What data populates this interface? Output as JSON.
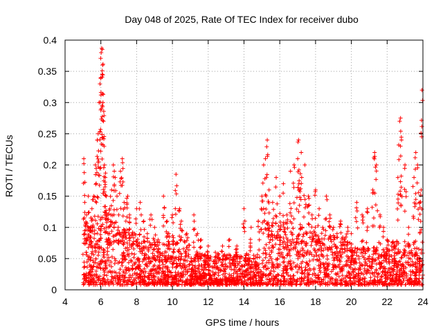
{
  "chart_data": {
    "type": "scatter",
    "title": "Day 048 of 2025, Rate Of TEC Index for receiver dubo",
    "xlabel": "GPS time / hours",
    "ylabel": "ROTI / TECUs",
    "xlim": [
      4,
      24
    ],
    "ylim": [
      0,
      0.4
    ],
    "x_ticks": [
      4,
      6,
      8,
      10,
      12,
      14,
      16,
      18,
      20,
      22,
      24
    ],
    "x_tick_labels": [
      "4",
      "6",
      "8",
      "10",
      "12",
      "14",
      "16",
      "18",
      "20",
      "22",
      "24"
    ],
    "y_ticks": [
      0,
      0.05,
      0.1,
      0.15,
      0.2,
      0.25,
      0.3,
      0.35,
      0.4
    ],
    "y_tick_labels": [
      "0",
      "0.05",
      "0.1",
      "0.15",
      "0.2",
      "0.25",
      "0.3",
      "0.35",
      "0.4"
    ],
    "grid": true,
    "legend": "none",
    "marker": "+",
    "color": "#ff0000",
    "series": [
      {
        "x": [
          5.05,
          5.1,
          5.2,
          5.3,
          5.4,
          5.5,
          5.6,
          5.7,
          5.8,
          5.85,
          5.9,
          5.95,
          6.0,
          6.02,
          6.05,
          6.08,
          6.1,
          6.12,
          6.15,
          6.18,
          6.2,
          6.25,
          6.3,
          6.35,
          6.4,
          6.5,
          6.6,
          6.7,
          6.8,
          6.9,
          7.0,
          7.1,
          7.2,
          7.3,
          7.4,
          7.5,
          7.6,
          7.8,
          8.0,
          8.2,
          8.4,
          8.6,
          8.8,
          9.0,
          9.2,
          9.5,
          9.7,
          9.8,
          10.0,
          10.2,
          10.4,
          10.5,
          10.8,
          11.2,
          11.4,
          11.6,
          12.0,
          12.4,
          12.8,
          13.2,
          13.6,
          14.0,
          14.4,
          14.8,
          15.0,
          15.1,
          15.2,
          15.3,
          15.4,
          15.6,
          15.8,
          16.0,
          16.2,
          16.4,
          16.6,
          16.8,
          17.0,
          17.05,
          17.1,
          17.2,
          17.4,
          17.6,
          17.8,
          18.0,
          18.2,
          18.4,
          18.6,
          18.8,
          19.0,
          19.2,
          19.4,
          19.6,
          19.8,
          20.0,
          20.3,
          20.6,
          20.9,
          21.2,
          21.3,
          21.4,
          21.6,
          21.8,
          22.0,
          22.4,
          22.6,
          22.7,
          22.75,
          22.8,
          23.0,
          23.2,
          23.5,
          23.6,
          23.7,
          23.8,
          23.9,
          23.95
        ],
        "y": [
          0.21,
          0.14,
          0.12,
          0.15,
          0.1,
          0.13,
          0.15,
          0.2,
          0.24,
          0.25,
          0.3,
          0.33,
          0.34,
          0.38,
          0.387,
          0.385,
          0.36,
          0.3,
          0.27,
          0.23,
          0.2,
          0.18,
          0.15,
          0.12,
          0.1,
          0.13,
          0.16,
          0.2,
          0.18,
          0.15,
          0.12,
          0.19,
          0.21,
          0.14,
          0.11,
          0.15,
          0.12,
          0.09,
          0.13,
          0.14,
          0.11,
          0.09,
          0.12,
          0.1,
          0.08,
          0.15,
          0.11,
          0.09,
          0.12,
          0.185,
          0.13,
          0.11,
          0.09,
          0.12,
          0.09,
          0.08,
          0.07,
          0.06,
          0.07,
          0.08,
          0.07,
          0.13,
          0.1,
          0.11,
          0.15,
          0.2,
          0.21,
          0.24,
          0.16,
          0.14,
          0.18,
          0.15,
          0.17,
          0.12,
          0.19,
          0.2,
          0.21,
          0.24,
          0.16,
          0.22,
          0.2,
          0.15,
          0.12,
          0.16,
          0.13,
          0.1,
          0.15,
          0.12,
          0.1,
          0.09,
          0.11,
          0.08,
          0.1,
          0.09,
          0.14,
          0.12,
          0.13,
          0.16,
          0.22,
          0.2,
          0.12,
          0.1,
          0.08,
          0.07,
          0.18,
          0.27,
          0.275,
          0.24,
          0.2,
          0.1,
          0.18,
          0.22,
          0.2,
          0.14,
          0.16,
          0.32
        ],
        "description_of_bulk": "dense band of points between 0.01 and ~0.08 ROTI across 5–24 h"
      }
    ]
  }
}
